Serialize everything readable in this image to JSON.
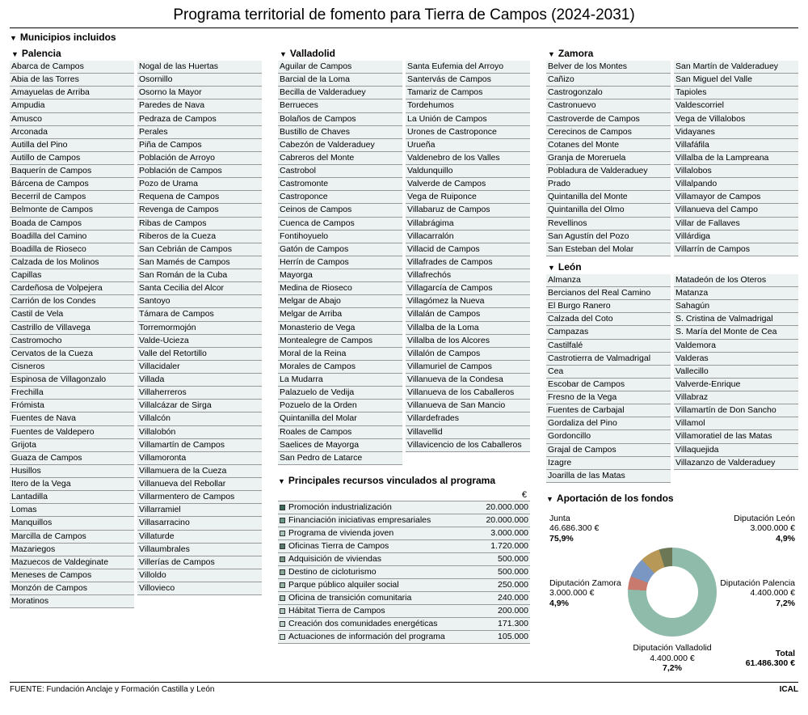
{
  "headline": "Programa territorial de fomento para Tierra de Campos (2024-2031)",
  "section_munis": "Municipios incluidos",
  "provinces": {
    "palencia": {
      "title": "Palencia",
      "left": [
        "Abarca de Campos",
        "Abia de las Torres",
        "Amayuelas de Arriba",
        "Ampudia",
        "Amusco",
        "Arconada",
        "Autilla del Pino",
        "Autillo de Campos",
        "Baquerín de Campos",
        "Bárcena de Campos",
        "Becerril de Campos",
        "Belmonte de Campos",
        "Boada de Campos",
        "Boadilla del Camino",
        "Boadilla de Rioseco",
        "Calzada de los Molinos",
        "Capillas",
        "Cardeñosa de Volpejera",
        "Carrión de los Condes",
        "Castil de Vela",
        "Castrillo de Villavega",
        "Castromocho",
        "Cervatos de la Cueza",
        "Cisneros",
        "Espinosa de Villagonzalo",
        "Frechilla",
        "Frómista",
        "Fuentes de Nava",
        "Fuentes de Valdepero",
        "Grijota",
        "Guaza de Campos",
        "Husillos",
        "Itero de la Vega",
        "Lantadilla",
        "Lomas",
        "Manquillos",
        "Marcilla de Campos",
        "Mazariegos",
        "Mazuecos de Valdeginate",
        "Meneses de Campos",
        "Monzón de Campos",
        "Moratinos"
      ],
      "right": [
        "Nogal de las Huertas",
        "Osornillo",
        "Osorno la Mayor",
        "Paredes de Nava",
        "Pedraza de Campos",
        "Perales",
        "Piña de Campos",
        "Población de Arroyo",
        "Población de Campos",
        "Pozo de Urama",
        "Requena de Campos",
        "Revenga de Campos",
        "Ribas de Campos",
        "Riberos de la Cueza",
        "San Cebrián de Campos",
        "San Mamés de Campos",
        "San Román de la Cuba",
        "Santa Cecilia del Alcor",
        "Santoyo",
        "Támara de Campos",
        "Torremormojón",
        "Valde-Ucieza",
        "Valle del Retortillo",
        "Villacidaler",
        "Villada",
        "Villaherreros",
        "Villalcázar de Sirga",
        "Villalcón",
        "Villalobón",
        "Villamartín de Campos",
        "Villamoronta",
        "Villamuera de la Cueza",
        "Villanueva del Rebollar",
        "Villarmentero de Campos",
        "Villarramiel",
        "Villasarracino",
        "Villaturde",
        "Villaumbrales",
        "Villerías de Campos",
        "Villoldo",
        "Villovieco"
      ]
    },
    "valladolid": {
      "title": "Valladolid",
      "left": [
        "Aguilar de Campos",
        "Barcial de la Loma",
        "Becilla de Valderaduey",
        "Berrueces",
        "Bolaños de Campos",
        "Bustillo de Chaves",
        "Cabezón de Valderaduey",
        "Cabreros del Monte",
        "Castrobol",
        "Castromonte",
        "Castroponce",
        "Ceinos de Campos",
        "Cuenca de Campos",
        "Fontihoyuelo",
        "Gatón de Campos",
        "Herrín de Campos",
        "Mayorga",
        "Medina de Rioseco",
        "Melgar de Abajo",
        "Melgar de Arriba",
        "Monasterio de Vega",
        "Montealegre de Campos",
        "Moral de la Reina",
        "Morales de Campos",
        "La Mudarra",
        "Palazuelo de Vedija",
        "Pozuelo de la Orden",
        "Quintanilla del Molar",
        "Roales de Campos",
        "Saelices de Mayorga",
        "San Pedro de Latarce"
      ],
      "right": [
        "Santa Eufemia del Arroyo",
        "Santervás de Campos",
        "Tamariz de Campos",
        "Tordehumos",
        "La Unión de Campos",
        "Urones de Castroponce",
        "Urueña",
        "Valdenebro de los Valles",
        "Valdunquillo",
        "Valverde de Campos",
        "Vega de Ruiponce",
        "Villabaruz de Campos",
        "Villabrágima",
        "Villacarralón",
        "Villacid de Campos",
        "Villafrades de Campos",
        "Villafrechós",
        "Villagarcía de Campos",
        "Villagómez la Nueva",
        "Villalán de Campos",
        "Villalba de la Loma",
        "Villalba de los Alcores",
        "Villalón de Campos",
        "Villamuriel de Campos",
        "Villanueva de la Condesa",
        "Villanueva de los Caballeros",
        "Villanueva de San Mancio",
        "Villardefrades",
        "Villavellid",
        "Villavicencio de los Caballeros"
      ]
    },
    "zamora": {
      "title": "Zamora",
      "left": [
        "Belver de los Montes",
        "Cañizo",
        "Castrogonzalo",
        "Castronuevo",
        "Castroverde de Campos",
        "Cerecinos de Campos",
        "Cotanes del Monte",
        "Granja de Moreruela",
        "Pobladura de Valderaduey",
        "Prado",
        "Quintanilla del Monte",
        "Quintanilla del Olmo",
        "Revellinos",
        "San Agustín del Pozo",
        "San Esteban del Molar"
      ],
      "right": [
        "San Martín de Valderaduey",
        "San Miguel del Valle",
        "Tapioles",
        "Valdescorriel",
        "Vega de Villalobos",
        "Vidayanes",
        "Villafáfila",
        "Villalba de la Lampreana",
        "Villalobos",
        "Villalpando",
        "Villamayor de Campos",
        "Villanueva del Campo",
        "Villar de Fallaves",
        "Villárdiga",
        "Villarrín de Campos"
      ]
    },
    "leon": {
      "title": "León",
      "left": [
        "Almanza",
        "Bercianos del Real Camino",
        "El Burgo Ranero",
        "Calzada del Coto",
        "Campazas",
        "Castilfalé",
        "Castrotierra de Valmadrigal",
        "Cea",
        "Escobar de Campos",
        "Fresno de la Vega",
        "Fuentes de Carbajal",
        "Gordaliza del Pino",
        "Gordoncillo",
        "Grajal de Campos",
        "Izagre",
        "Joarilla de las Matas"
      ],
      "right": [
        "Matadeón de los Oteros",
        "Matanza",
        "Sahagún",
        "S. Cristina de Valmadrigal",
        "S. María del Monte de Cea",
        "Valdemora",
        "Valderas",
        "Vallecillo",
        "Valverde-Enrique",
        "Villabraz",
        "Villamartín de Don Sancho",
        "Villamol",
        "Villamoratiel de las Matas",
        "Villaquejida",
        "Villazanzo de Valderaduey"
      ]
    }
  },
  "resources_title": "Principales recursos vinculados al programa",
  "euro_header": "€",
  "resources": [
    {
      "name": "Promoción industrialización",
      "value": "20.000.000",
      "color": "#3d6b5a"
    },
    {
      "name": "Financiación iniciativas empresariales",
      "value": "20.000.000",
      "color": "#6b9b88"
    },
    {
      "name": "Programa de vivienda joven",
      "value": "3.000.000",
      "color": "#a8c5b8"
    },
    {
      "name": "Oficinas Tierra de Campos",
      "value": "1.720.000",
      "color": "#5a7a6c"
    },
    {
      "name": "Adquisición de viviendas",
      "value": "500.000",
      "color": "#7a9988"
    },
    {
      "name": "Destino de cicloturismo",
      "value": "500.000",
      "color": "#88a896"
    },
    {
      "name": "Parque público alquiler social",
      "value": "250.000",
      "color": "#95b3a3"
    },
    {
      "name": "Oficina de transición comunitaria",
      "value": "240.000",
      "color": "#a2bdb0"
    },
    {
      "name": "Hábitat Tierra de Campos",
      "value": "200.000",
      "color": "#afc7bc"
    },
    {
      "name": "Creación dos comunidades energéticas",
      "value": "171.300",
      "color": "#bcd1c8"
    },
    {
      "name": "Actuaciones de información del programa",
      "value": "105.000",
      "color": "#c9dcd4"
    }
  ],
  "funds_title": "Aportación de los fondos",
  "funds": [
    {
      "name": "Junta",
      "amount": "46.686.300 €",
      "pct": "75,9%",
      "deg": 273.2,
      "color": "#8fbbaa"
    },
    {
      "name": "Diputación León",
      "amount": "3.000.000 €",
      "pct": "4,9%",
      "deg": 17.6,
      "color": "#c97a6e"
    },
    {
      "name": "Diputación Palencia",
      "amount": "4.400.000 €",
      "pct": "7,2%",
      "deg": 25.9,
      "color": "#7a97c4"
    },
    {
      "name": "Diputación Valladolid",
      "amount": "4.400.000 €",
      "pct": "7,2%",
      "deg": 25.9,
      "color": "#b89856"
    },
    {
      "name": "Diputación Zamora",
      "amount": "3.000.000 €",
      "pct": "4,9%",
      "deg": 17.6,
      "color": "#6b7755"
    }
  ],
  "funds_total_label": "Total",
  "funds_total": "61.486.300 €",
  "source_label": "FUENTE: Fundación Anclaje y Formación Castilla y León",
  "agency": "ICAL"
}
